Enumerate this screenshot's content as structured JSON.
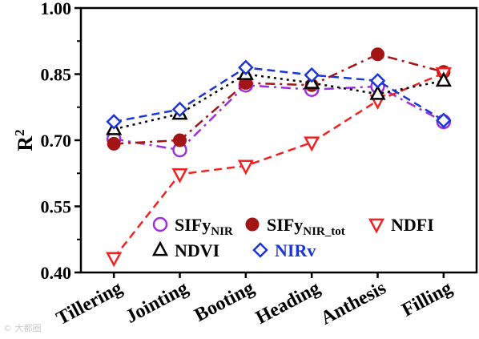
{
  "chart_data": {
    "type": "line",
    "categories": [
      "Tillering",
      "Jointing",
      "Booting",
      "Heading",
      "Anthesis",
      "Filling"
    ],
    "ylabel": "R",
    "ylabel_sup": "2",
    "ylim": [
      0.4,
      1.0
    ],
    "yticks": [
      "0.40",
      "0.55",
      "0.70",
      "0.85",
      "1.00"
    ],
    "ytick_values": [
      0.4,
      0.55,
      0.7,
      0.85,
      1.0
    ],
    "grid": false,
    "legend_position": "bottom-right",
    "series": [
      {
        "name": "SIFy",
        "name_sub": "NIR",
        "color": "#9B30D9",
        "marker": "circle-open",
        "dash": "12,6,3,6",
        "values": [
          0.703,
          0.678,
          0.825,
          0.815,
          0.822,
          0.742
        ]
      },
      {
        "name": "SIFy",
        "name_sub": "NIR_tot",
        "color": "#A31515",
        "marker": "circle-filled",
        "dash": "12,6,3,6",
        "values": [
          0.692,
          0.7,
          0.83,
          0.825,
          0.895,
          0.855
        ]
      },
      {
        "name": "NDFI",
        "name_sub": "",
        "color": "#EE2222",
        "marker": "triangle-down",
        "dash": "10,6",
        "values": [
          0.433,
          0.623,
          0.642,
          0.695,
          0.79,
          0.852
        ]
      },
      {
        "name": "NDVI",
        "name_sub": "",
        "color": "#000000",
        "marker": "triangle-up",
        "dash": "3,5",
        "values": [
          0.725,
          0.76,
          0.85,
          0.83,
          0.805,
          0.835
        ]
      },
      {
        "name": "NIRv",
        "name_sub": "",
        "color": "#1B35D6",
        "marker": "diamond",
        "dash": "10,6",
        "values": [
          0.742,
          0.77,
          0.865,
          0.848,
          0.835,
          0.745
        ]
      }
    ]
  },
  "watermark": "© 大都圈"
}
